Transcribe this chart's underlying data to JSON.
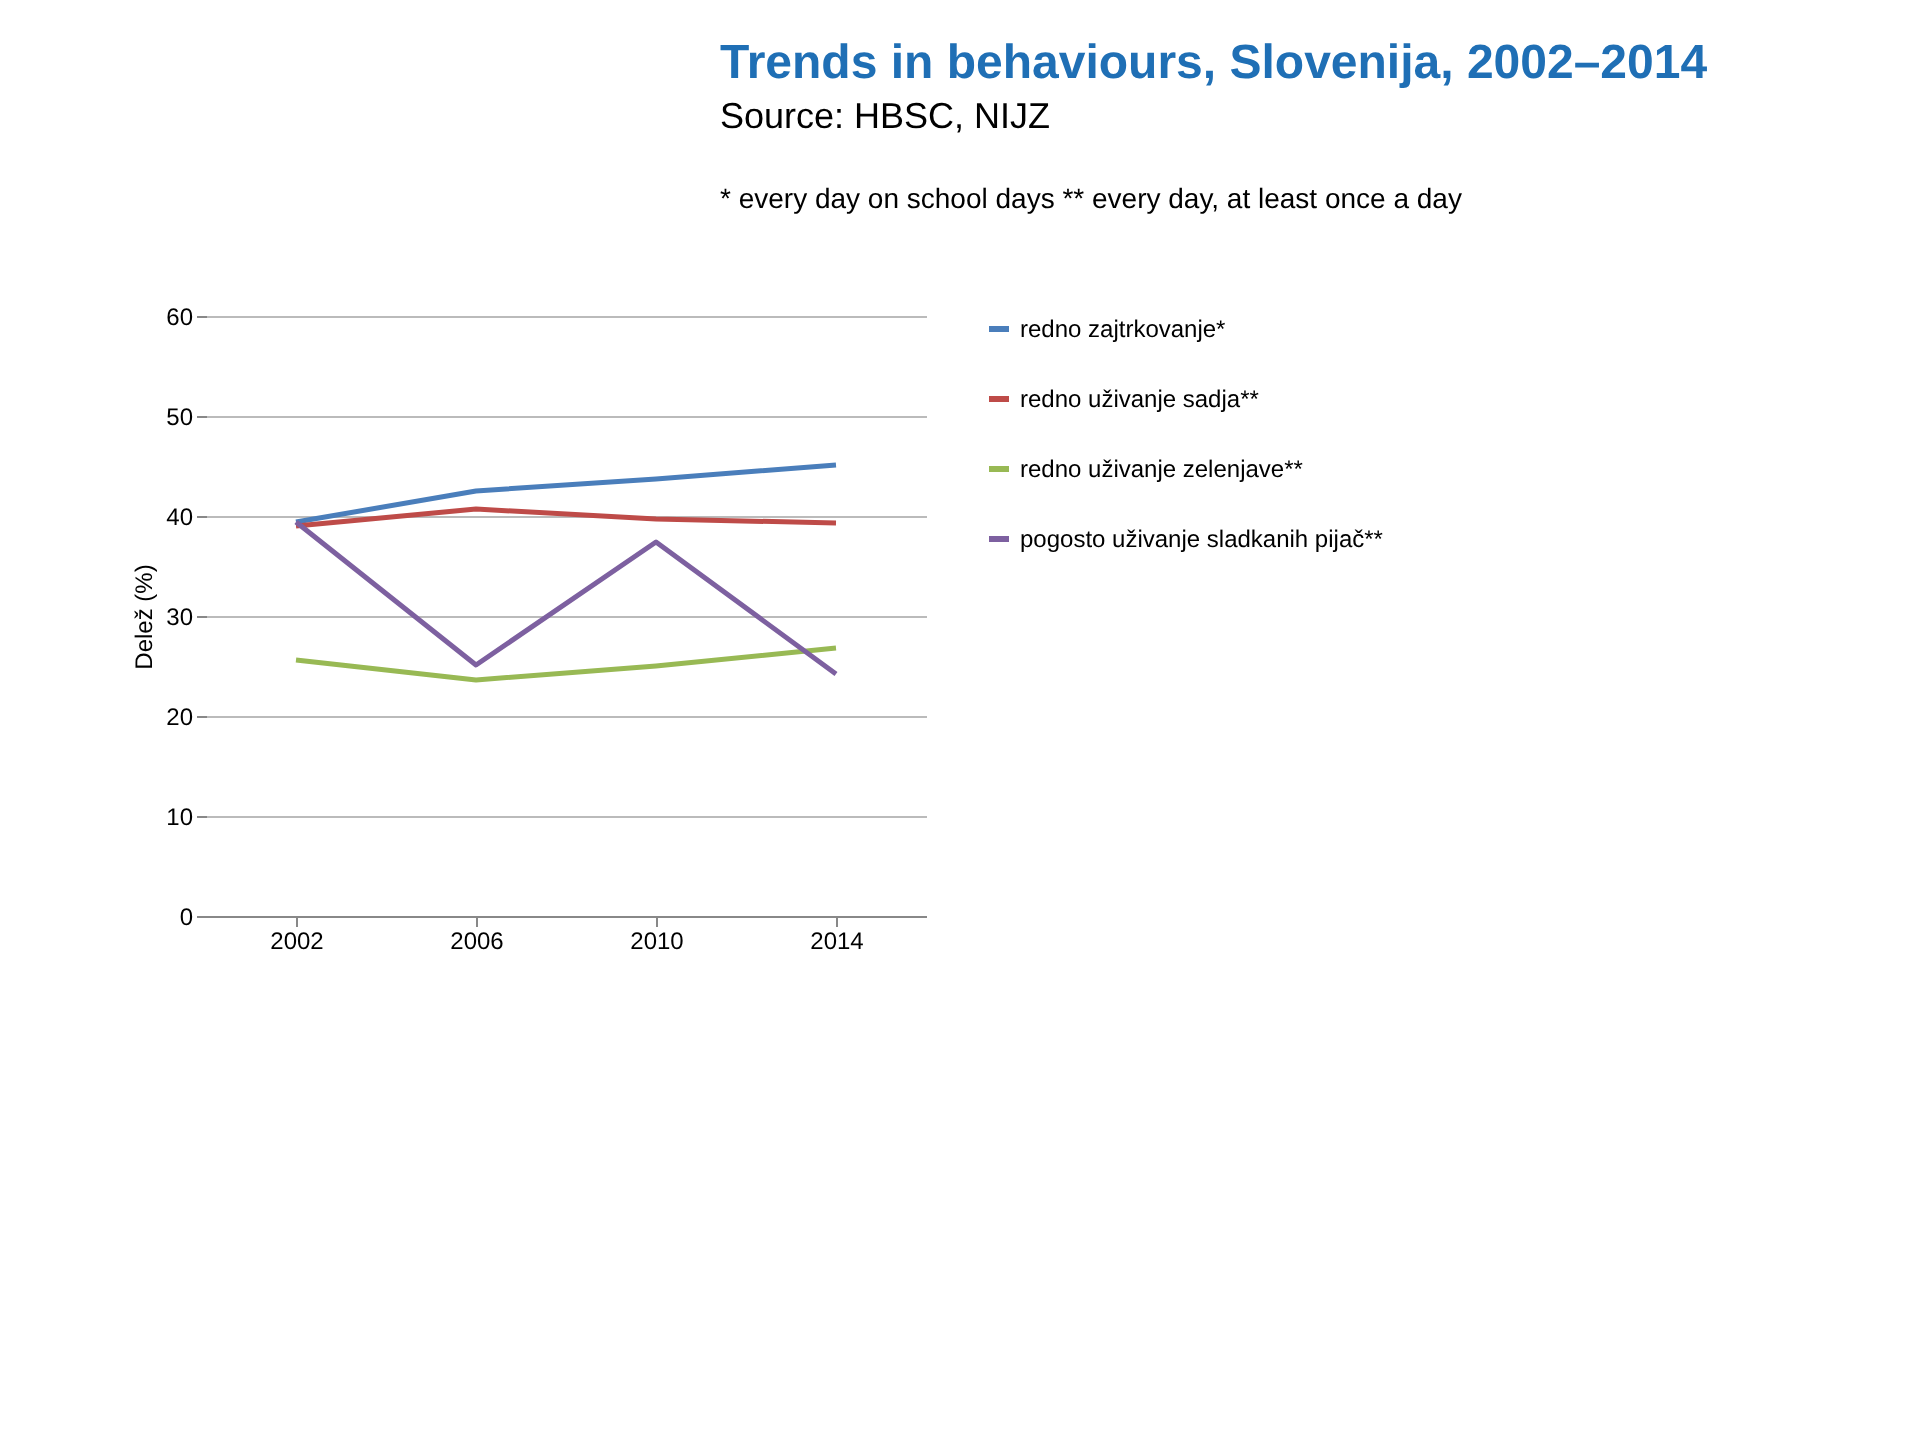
{
  "chart_data": {
    "type": "line",
    "title": "Trends in behaviours, Slovenija, 2002–2014",
    "subtitle": "Source: HBSC, NIJZ",
    "annotations": [
      "* every day on school days ** every day, at least once a day"
    ],
    "ylabel": "Delež (%)",
    "categories": [
      "2002",
      "2006",
      "2010",
      "2014"
    ],
    "series": [
      {
        "name": "redno zajtrkovanje*",
        "color": "#4a7ebb",
        "values": [
          39.4,
          42.5,
          43.7,
          45.1
        ]
      },
      {
        "name": "redno uživanje sadja**",
        "color": "#be4b48",
        "values": [
          39.0,
          40.7,
          39.7,
          39.3
        ]
      },
      {
        "name": "redno uživanje zelenjave**",
        "color": "#98b954",
        "values": [
          25.6,
          23.6,
          25.0,
          26.8
        ]
      },
      {
        "name": "pogosto uživanje sladkanih pijač**",
        "color": "#7d60a0",
        "values": [
          39.4,
          25.1,
          37.4,
          24.2
        ]
      }
    ],
    "ylim": [
      0,
      60
    ],
    "yticks": [
      0,
      10,
      20,
      30,
      40,
      50,
      60
    ],
    "grid": "y",
    "legend": "right",
    "marker": "none",
    "line_style": "solid"
  }
}
